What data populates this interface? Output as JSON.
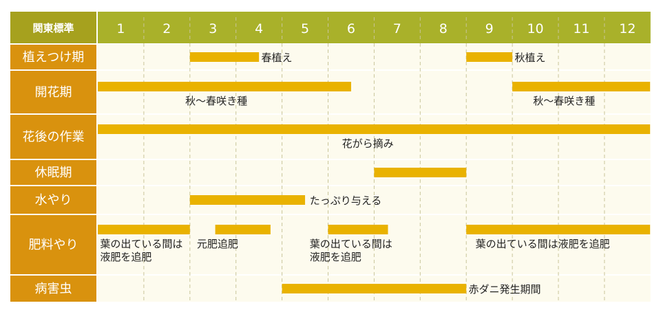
{
  "chart_data": {
    "type": "gantt",
    "corner_label": "関東標準",
    "months": [
      "1",
      "2",
      "3",
      "4",
      "5",
      "6",
      "7",
      "8",
      "9",
      "10",
      "11",
      "12"
    ],
    "colors": {
      "header": "#a9b12a",
      "row_label": "#d9920e",
      "bar": "#e9b200",
      "row_bg": "#fdfbee"
    },
    "rows": [
      {
        "label": "植えつけ期",
        "bars": [
          {
            "start": 3,
            "end": 4.5
          },
          {
            "start": 9,
            "end": 10
          }
        ],
        "annotations": [
          {
            "text": "春植え",
            "at": 4.55,
            "line": "bar"
          },
          {
            "text": "秋植え",
            "at": 10.05,
            "line": "bar"
          }
        ]
      },
      {
        "label": "開花期",
        "bars": [
          {
            "start": 1,
            "end": 6.5
          },
          {
            "start": 10,
            "end": 12.99
          }
        ],
        "annotations": [
          {
            "text": "秋〜春咲き種",
            "at": 2.9,
            "line": "below"
          },
          {
            "text": "秋〜春咲き種",
            "at": 10.45,
            "line": "below"
          }
        ]
      },
      {
        "label": "花後の作業",
        "bars": [
          {
            "start": 1,
            "end": 12.99
          }
        ],
        "annotations": [
          {
            "text": "花がら摘み",
            "at": 6.3,
            "line": "below"
          }
        ]
      },
      {
        "label": "休眠期",
        "bars": [
          {
            "start": 7,
            "end": 9
          }
        ],
        "annotations": []
      },
      {
        "label": "水やり",
        "bars": [
          {
            "start": 3,
            "end": 5.5
          }
        ],
        "annotations": [
          {
            "text": "たっぷり与える",
            "at": 5.6,
            "line": "bar"
          }
        ]
      },
      {
        "label": "肥料やり",
        "bars": [
          {
            "start": 1,
            "end": 3
          },
          {
            "start": 3.55,
            "end": 4.75
          },
          {
            "start": 6,
            "end": 7.3
          },
          {
            "start": 9,
            "end": 12.99
          }
        ],
        "annotations": [
          {
            "text": "葉の出ている間は",
            "at": 1.05,
            "line": "below"
          },
          {
            "text": "液肥を追肥",
            "at": 1.05,
            "line": "below2"
          },
          {
            "text": "元肥追肥",
            "at": 3.15,
            "line": "below"
          },
          {
            "text": "葉の出ている間は",
            "at": 5.6,
            "line": "below"
          },
          {
            "text": "液肥を追肥",
            "at": 5.6,
            "line": "below2"
          },
          {
            "text": "葉の出ている間は液肥を追肥",
            "at": 9.2,
            "line": "below"
          }
        ]
      },
      {
        "label": "病害虫",
        "bars": [
          {
            "start": 5,
            "end": 9
          }
        ],
        "annotations": [
          {
            "text": "赤ダニ発生期間",
            "at": 9.05,
            "line": "bar"
          }
        ]
      }
    ]
  }
}
